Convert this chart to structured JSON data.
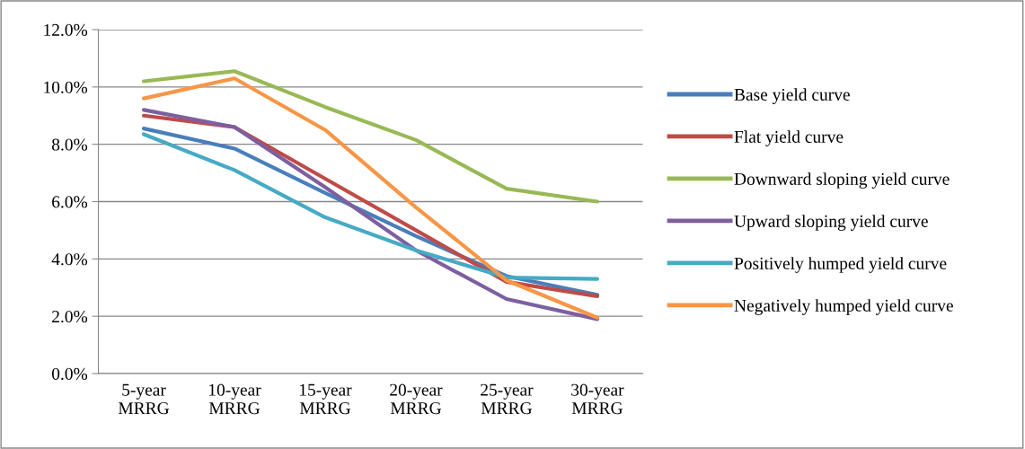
{
  "chart_data": {
    "type": "line",
    "categories": [
      "5-year\nMRRG",
      "10-year\nMRRG",
      "15-year\nMRRG",
      "20-year\nMRRG",
      "25-year\nMRRG",
      "30-year\nMRRG"
    ],
    "series": [
      {
        "name": "Base yield curve",
        "color": "#4a7ebb",
        "values": [
          8.55,
          7.85,
          6.3,
          4.8,
          3.4,
          2.75
        ]
      },
      {
        "name": "Flat yield curve",
        "color": "#be4b48",
        "values": [
          9.0,
          8.6,
          6.8,
          5.0,
          3.2,
          2.7
        ]
      },
      {
        "name": "Downward sloping yield curve",
        "color": "#98b954",
        "values": [
          10.2,
          10.55,
          9.3,
          8.15,
          6.45,
          6.0
        ]
      },
      {
        "name": "Upward sloping yield curve",
        "color": "#7d5fa0",
        "values": [
          9.2,
          8.6,
          6.5,
          4.3,
          2.6,
          1.9
        ]
      },
      {
        "name": "Positively humped yield curve",
        "color": "#46aac5",
        "values": [
          8.35,
          7.1,
          5.45,
          4.3,
          3.35,
          3.3
        ]
      },
      {
        "name": "Negatively humped yield curve",
        "color": "#f79646",
        "values": [
          9.6,
          10.3,
          8.5,
          5.8,
          3.25,
          1.95
        ]
      }
    ],
    "ylim": [
      0,
      12
    ],
    "yticks": [
      {
        "value": 0,
        "label": "0.0%"
      },
      {
        "value": 2,
        "label": "2.0%"
      },
      {
        "value": 4,
        "label": "4.0%"
      },
      {
        "value": 6,
        "label": "6.0%"
      },
      {
        "value": 8,
        "label": "8.0%"
      },
      {
        "value": 10,
        "label": "10.0%"
      },
      {
        "value": 12,
        "label": "12.0%"
      }
    ],
    "grid": "y",
    "legend": "right",
    "marker": "none",
    "line_style": "solid"
  }
}
